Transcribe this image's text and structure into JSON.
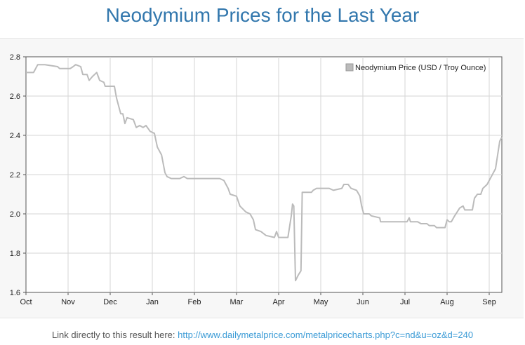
{
  "page": {
    "title": "Neodymium Prices for the Last Year",
    "link_prefix": "Link directly to this result here:",
    "link_url": "http://www.dailymetalprice.com/metalpricecharts.php?c=nd&u=oz&d=240"
  },
  "chart_data": {
    "type": "line",
    "title": "",
    "xlabel": "",
    "ylabel": "",
    "ylim": [
      1.6,
      2.8
    ],
    "xlim": [
      0,
      11.3
    ],
    "yticks": [
      "1.6",
      "1.8",
      "2.0",
      "2.2",
      "2.4",
      "2.6",
      "2.8"
    ],
    "xtick_labels": [
      "Oct",
      "Nov",
      "Dec",
      "Jan",
      "Feb",
      "Mar",
      "Apr",
      "May",
      "Jun",
      "Jul",
      "Aug",
      "Sep"
    ],
    "grid": true,
    "legend_position": "top-right",
    "series": [
      {
        "name": "Neodymium Price (USD / Troy Ounce)",
        "color": "#bbbbbb",
        "points": [
          [
            0.0,
            2.72
          ],
          [
            0.18,
            2.72
          ],
          [
            0.28,
            2.76
          ],
          [
            0.45,
            2.76
          ],
          [
            0.75,
            2.75
          ],
          [
            0.8,
            2.74
          ],
          [
            1.05,
            2.74
          ],
          [
            1.12,
            2.75
          ],
          [
            1.18,
            2.76
          ],
          [
            1.3,
            2.75
          ],
          [
            1.35,
            2.71
          ],
          [
            1.45,
            2.71
          ],
          [
            1.5,
            2.68
          ],
          [
            1.58,
            2.7
          ],
          [
            1.63,
            2.71
          ],
          [
            1.68,
            2.72
          ],
          [
            1.75,
            2.68
          ],
          [
            1.85,
            2.67
          ],
          [
            1.88,
            2.65
          ],
          [
            2.1,
            2.65
          ],
          [
            2.15,
            2.59
          ],
          [
            2.25,
            2.51
          ],
          [
            2.3,
            2.51
          ],
          [
            2.35,
            2.46
          ],
          [
            2.4,
            2.49
          ],
          [
            2.55,
            2.48
          ],
          [
            2.62,
            2.44
          ],
          [
            2.7,
            2.45
          ],
          [
            2.78,
            2.44
          ],
          [
            2.85,
            2.45
          ],
          [
            2.95,
            2.42
          ],
          [
            3.05,
            2.41
          ],
          [
            3.12,
            2.34
          ],
          [
            3.22,
            2.3
          ],
          [
            3.3,
            2.21
          ],
          [
            3.35,
            2.19
          ],
          [
            3.45,
            2.18
          ],
          [
            3.65,
            2.18
          ],
          [
            3.75,
            2.19
          ],
          [
            3.83,
            2.18
          ],
          [
            4.1,
            2.18
          ],
          [
            4.2,
            2.18
          ],
          [
            4.6,
            2.18
          ],
          [
            4.7,
            2.17
          ],
          [
            4.8,
            2.13
          ],
          [
            4.85,
            2.1
          ],
          [
            5.0,
            2.09
          ],
          [
            5.08,
            2.04
          ],
          [
            5.22,
            2.01
          ],
          [
            5.32,
            2.0
          ],
          [
            5.4,
            1.97
          ],
          [
            5.45,
            1.92
          ],
          [
            5.58,
            1.91
          ],
          [
            5.7,
            1.89
          ],
          [
            5.9,
            1.88
          ],
          [
            5.95,
            1.91
          ],
          [
            6.0,
            1.88
          ],
          [
            6.22,
            1.88
          ],
          [
            6.3,
            1.99
          ],
          [
            6.33,
            2.05
          ],
          [
            6.36,
            2.04
          ],
          [
            6.4,
            1.66
          ],
          [
            6.47,
            1.69
          ],
          [
            6.53,
            1.71
          ],
          [
            6.56,
            2.11
          ],
          [
            6.78,
            2.11
          ],
          [
            6.82,
            2.12
          ],
          [
            6.9,
            2.13
          ],
          [
            7.0,
            2.13
          ],
          [
            7.2,
            2.13
          ],
          [
            7.3,
            2.12
          ],
          [
            7.5,
            2.13
          ],
          [
            7.55,
            2.15
          ],
          [
            7.65,
            2.15
          ],
          [
            7.72,
            2.13
          ],
          [
            7.85,
            2.12
          ],
          [
            7.93,
            2.09
          ],
          [
            7.97,
            2.04
          ],
          [
            8.02,
            2.0
          ],
          [
            8.15,
            2.0
          ],
          [
            8.2,
            1.99
          ],
          [
            8.4,
            1.98
          ],
          [
            8.42,
            1.96
          ],
          [
            8.6,
            1.96
          ],
          [
            8.9,
            1.96
          ],
          [
            9.05,
            1.96
          ],
          [
            9.1,
            1.98
          ],
          [
            9.13,
            1.96
          ],
          [
            9.3,
            1.96
          ],
          [
            9.38,
            1.95
          ],
          [
            9.43,
            1.95
          ],
          [
            9.52,
            1.95
          ],
          [
            9.58,
            1.94
          ],
          [
            9.7,
            1.94
          ],
          [
            9.75,
            1.93
          ],
          [
            9.95,
            1.93
          ],
          [
            10.0,
            1.97
          ],
          [
            10.05,
            1.96
          ],
          [
            10.1,
            1.96
          ],
          [
            10.18,
            1.99
          ],
          [
            10.3,
            2.03
          ],
          [
            10.38,
            2.04
          ],
          [
            10.42,
            2.02
          ],
          [
            10.6,
            2.02
          ],
          [
            10.65,
            2.08
          ],
          [
            10.72,
            2.1
          ],
          [
            10.8,
            2.1
          ],
          [
            10.85,
            2.13
          ],
          [
            10.95,
            2.15
          ],
          [
            11.0,
            2.17
          ],
          [
            11.05,
            2.19
          ],
          [
            11.1,
            2.21
          ],
          [
            11.15,
            2.23
          ],
          [
            11.2,
            2.3
          ],
          [
            11.25,
            2.37
          ],
          [
            11.3,
            2.39
          ]
        ]
      }
    ]
  }
}
